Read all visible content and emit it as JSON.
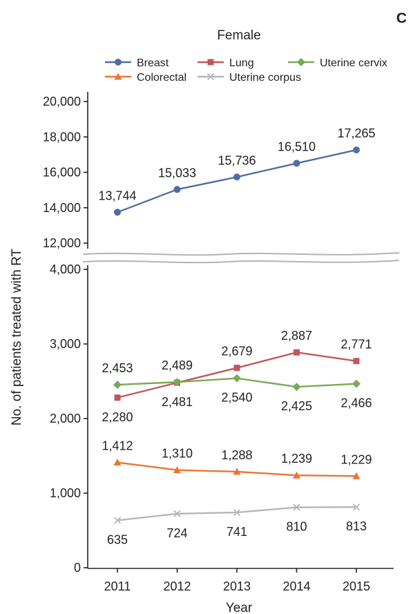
{
  "panel_letter": "C",
  "chart_data": {
    "type": "line",
    "title": "Female",
    "xlabel": "Year",
    "ylabel": "No. of patients treated with RT",
    "categories": [
      "2011",
      "2012",
      "2013",
      "2014",
      "2015"
    ],
    "axis_break": {
      "from": 4000,
      "to": 12000
    },
    "lower_ticks": [
      "0",
      "1,000",
      "2,000",
      "3,000",
      "4,000"
    ],
    "upper_ticks": [
      "12,000",
      "14,000",
      "16,000",
      "18,000",
      "20,000"
    ],
    "lower_tick_values": [
      0,
      1000,
      2000,
      3000,
      4000
    ],
    "upper_tick_values": [
      12000,
      14000,
      16000,
      18000,
      20000
    ],
    "legend_position": "top",
    "series": [
      {
        "name": "Breast",
        "color": "#4e6ea3",
        "marker": "circle",
        "values": [
          13744,
          15033,
          15736,
          16510,
          17265
        ],
        "labels": [
          "13,744",
          "15,033",
          "15,736",
          "16,510",
          "17,265"
        ],
        "label_pos": "above"
      },
      {
        "name": "Lung",
        "color": "#c0575a",
        "marker": "square",
        "values": [
          2280,
          2481,
          2679,
          2887,
          2771
        ],
        "labels": [
          "2,280",
          "2,481",
          "2,679",
          "2,887",
          "2,771"
        ],
        "label_pos": [
          "below",
          "below",
          "above",
          "above",
          "above"
        ]
      },
      {
        "name": "Uterine cervix",
        "color": "#7aa957",
        "marker": "diamond",
        "values": [
          2453,
          2489,
          2540,
          2425,
          2466
        ],
        "labels": [
          "2,453",
          "2,489",
          "2,540",
          "2,425",
          "2,466"
        ],
        "label_pos": [
          "above",
          "above",
          "below",
          "below",
          "below"
        ]
      },
      {
        "name": "Colorectal",
        "color": "#ec7434",
        "marker": "triangle",
        "values": [
          1412,
          1310,
          1288,
          1239,
          1229
        ],
        "labels": [
          "1,412",
          "1,310",
          "1,288",
          "1,239",
          "1,229"
        ],
        "label_pos": "above"
      },
      {
        "name": "Uterine corpus",
        "color": "#b3b7bc",
        "marker": "x",
        "values": [
          635,
          724,
          741,
          810,
          813
        ],
        "labels": [
          "635",
          "724",
          "741",
          "810",
          "813"
        ],
        "label_pos": "below"
      }
    ]
  }
}
